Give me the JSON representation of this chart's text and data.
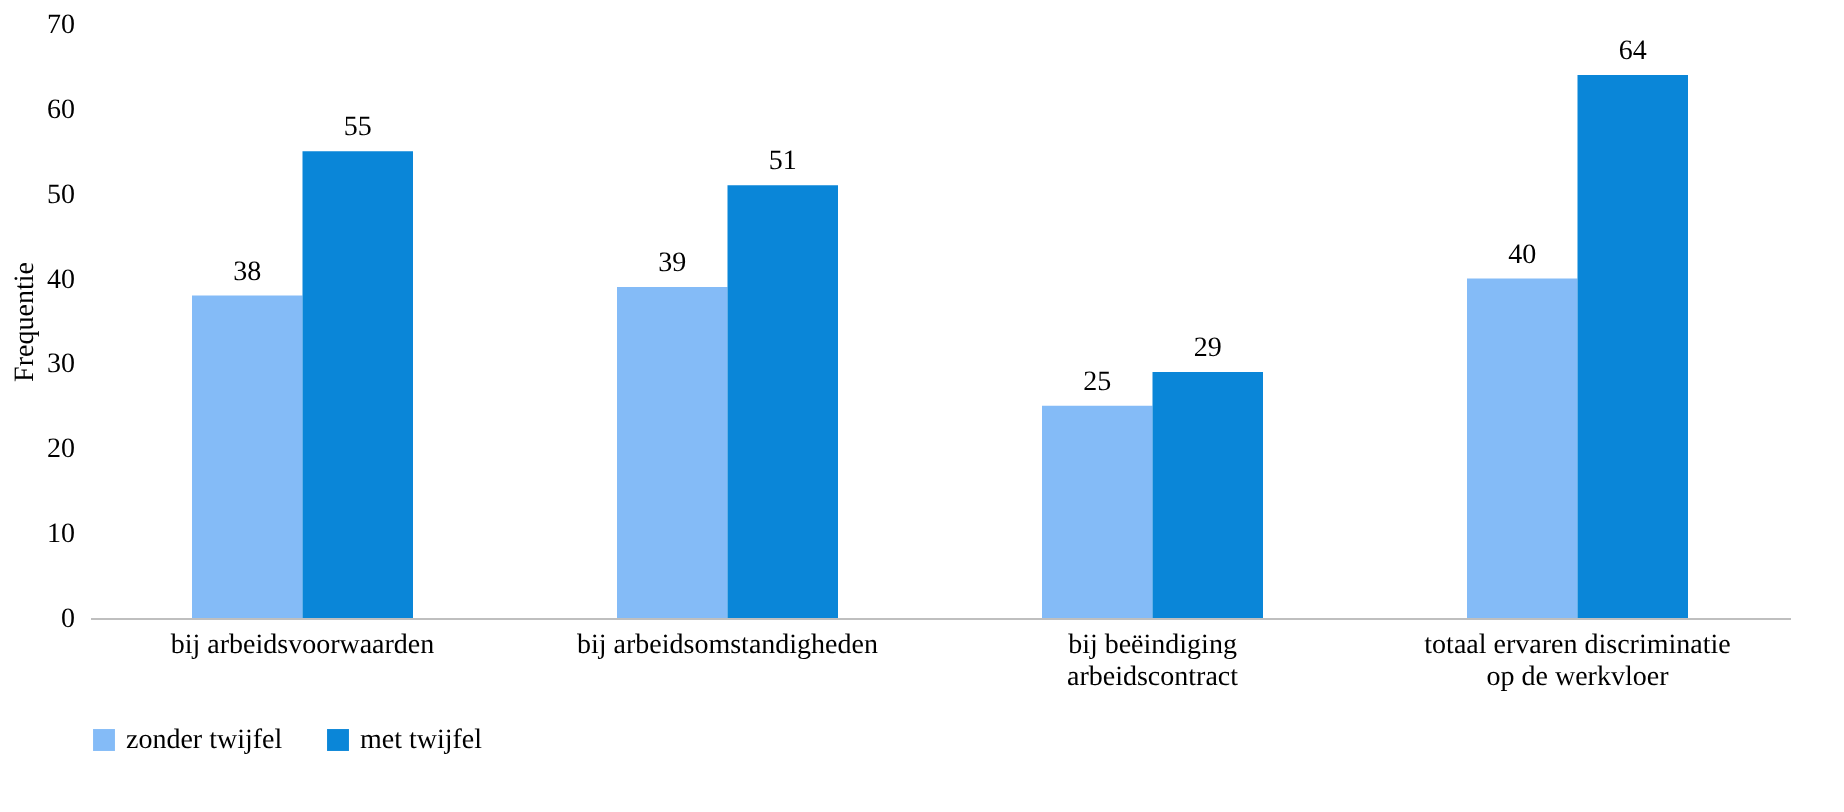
{
  "chart_data": {
    "type": "bar",
    "ylabel": "Frequentie",
    "categories": [
      "bij arbeidsvoorwaarden",
      "bij arbeidsomstandigheden",
      "bij beëindiging\narbeidscontract",
      "totaal ervaren discriminatie\nop de werkvloer"
    ],
    "series": [
      {
        "name": "zonder twijfel",
        "color": "#84bbf7",
        "values": [
          38,
          39,
          25,
          40
        ]
      },
      {
        "name": "met twijfel",
        "color": "#0a86d8",
        "values": [
          55,
          51,
          29,
          64
        ]
      }
    ],
    "ylim": [
      0,
      70
    ],
    "yticks": [
      0,
      10,
      20,
      30,
      40,
      50,
      60,
      70
    ],
    "grid": false,
    "legend": "bottom",
    "data_labels": true
  }
}
